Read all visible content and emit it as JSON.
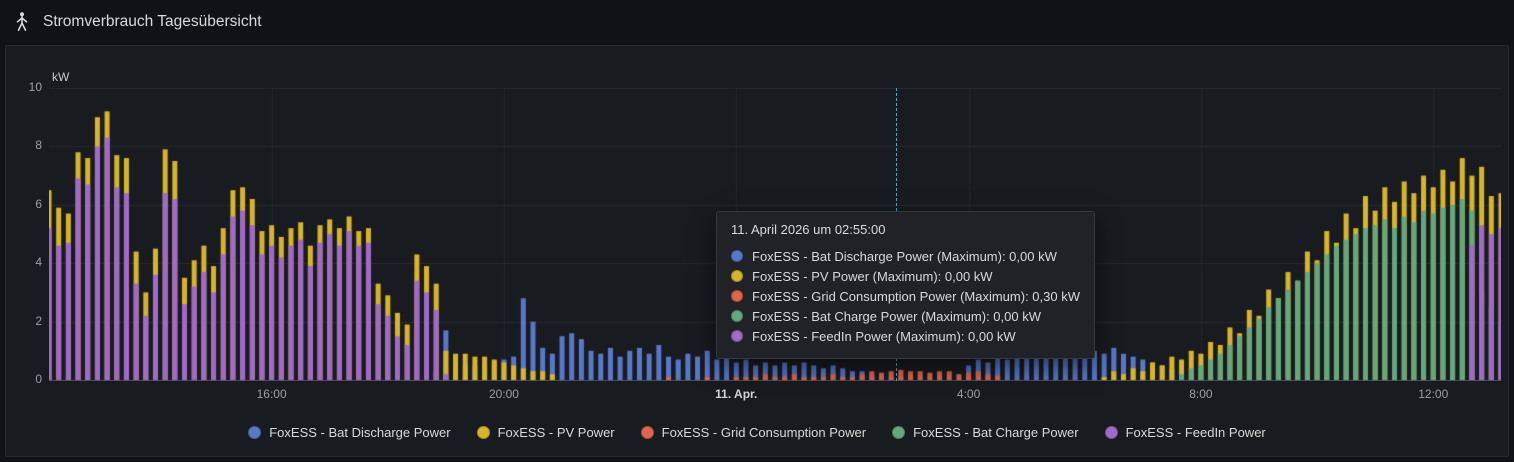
{
  "header": {
    "title": "Stromverbrauch Tagesübersicht"
  },
  "axis": {
    "unit": "kW",
    "y": [
      "10",
      "8",
      "6",
      "4",
      "2",
      "0"
    ],
    "x": [
      "16:00",
      "20:00",
      "11. Apr.",
      "4:00",
      "8:00",
      "12:00"
    ]
  },
  "tooltip": {
    "title": "11. April 2026 um 02:55:00",
    "rows": [
      {
        "text": "FoxESS - Bat Discharge Power (Maximum): 0,00 kW",
        "color": "#5a78c9"
      },
      {
        "text": "FoxESS - PV Power (Maximum): 0,00 kW",
        "color": "#d8b429"
      },
      {
        "text": "FoxESS - Grid Consumption Power (Maximum): 0,30 kW",
        "color": "#e0654f"
      },
      {
        "text": "FoxESS - Bat Charge Power (Maximum): 0,00 kW",
        "color": "#64a87d"
      },
      {
        "text": "FoxESS - FeedIn Power (Maximum): 0,00 kW",
        "color": "#a169c9"
      }
    ]
  },
  "legend": {
    "items": [
      {
        "label": "FoxESS - Bat Discharge Power",
        "color": "#5a78c9"
      },
      {
        "label": "FoxESS - PV Power",
        "color": "#d8b429"
      },
      {
        "label": "FoxESS - Grid Consumption Power",
        "color": "#e0654f"
      },
      {
        "label": "FoxESS - Bat Charge Power",
        "color": "#64a87d"
      },
      {
        "label": "FoxESS - FeedIn Power",
        "color": "#a169c9"
      }
    ]
  },
  "chart_data": {
    "type": "bar",
    "title": "Stromverbrauch Tagesübersicht",
    "ylabel": "kW",
    "ylim": [
      0,
      10
    ],
    "y_ticks": [
      0,
      2,
      4,
      6,
      8,
      10
    ],
    "x_start": "12:10 (10. Apr.)",
    "x_end": "13:10 (11. Apr.)",
    "x_interval_minutes": 10,
    "x_tick_marks": [
      {
        "label": "16:00",
        "index": 23
      },
      {
        "label": "20:00",
        "index": 47
      },
      {
        "label": "11. Apr.",
        "index": 71
      },
      {
        "label": "4:00",
        "index": 95
      },
      {
        "label": "8:00",
        "index": 119
      },
      {
        "label": "12:00",
        "index": 143
      }
    ],
    "cursor": {
      "time": "11. April 2026 um 02:55:00",
      "fraction": 0.583
    },
    "legend_position": "bottom-center",
    "grid": true,
    "series": [
      {
        "name": "FoxESS - Bat Discharge Power",
        "color": "#5a78c9",
        "values": [
          0,
          0,
          0,
          0,
          0,
          0,
          0,
          0,
          0,
          0,
          0,
          0,
          0,
          0,
          0,
          0,
          0,
          0,
          0,
          0,
          0,
          0,
          0,
          0,
          0,
          0,
          0,
          0,
          0,
          0,
          0,
          0,
          0,
          0,
          0,
          0,
          0,
          0,
          0,
          0,
          0.3,
          1.7,
          0.4,
          0.5,
          0.5,
          0.6,
          0.6,
          0.7,
          0.8,
          2.8,
          2.0,
          1.1,
          0.9,
          1.5,
          1.6,
          1.4,
          1.0,
          0.9,
          1.1,
          0.8,
          1.0,
          1.1,
          0.9,
          1.2,
          0.8,
          0.7,
          0.9,
          0.8,
          1.0,
          0.7,
          0.8,
          0.6,
          0.7,
          0.5,
          0.6,
          0.5,
          0.6,
          0.5,
          0.6,
          0.5,
          0.4,
          0.5,
          0.4,
          0.3,
          0.3,
          0.2,
          0.2,
          0.1,
          0.1,
          0,
          0,
          0,
          0,
          0,
          0,
          0.5,
          0.7,
          0.6,
          0.8,
          0.7,
          0.9,
          0.8,
          1.0,
          0.9,
          1.1,
          0.8,
          0.9,
          0.8,
          1.0,
          0.9,
          1.1,
          0.9,
          0.8,
          0.7,
          0.6,
          0.5,
          0.4,
          0,
          0,
          0,
          0,
          0,
          0,
          0,
          0,
          0,
          0,
          0,
          0,
          0,
          0,
          0,
          0,
          0,
          0,
          0,
          0,
          0,
          0,
          0,
          0,
          0,
          0,
          0,
          0,
          0,
          0,
          0,
          0,
          0,
          0
        ]
      },
      {
        "name": "FoxESS - PV Power",
        "color": "#d8b429",
        "values": [
          6.5,
          5.9,
          5.7,
          7.8,
          7.6,
          9.0,
          9.2,
          7.7,
          7.6,
          4.4,
          3.0,
          4.5,
          7.9,
          7.5,
          3.5,
          4.1,
          4.6,
          3.9,
          5.2,
          6.5,
          6.6,
          6.2,
          5.1,
          5.3,
          4.9,
          5.2,
          5.4,
          4.6,
          5.3,
          5.5,
          5.2,
          5.6,
          5.1,
          5.2,
          3.3,
          2.9,
          2.3,
          1.9,
          4.3,
          3.9,
          3.3,
          1.0,
          0.9,
          0.9,
          0.8,
          0.8,
          0.7,
          0.6,
          0.5,
          0.4,
          0.3,
          0.3,
          0.2,
          0,
          0,
          0,
          0,
          0,
          0,
          0,
          0,
          0,
          0,
          0,
          0,
          0,
          0,
          0,
          0,
          0,
          0,
          0,
          0,
          0,
          0,
          0,
          0,
          0,
          0,
          0,
          0,
          0,
          0,
          0,
          0,
          0,
          0,
          0,
          0,
          0,
          0,
          0,
          0,
          0,
          0,
          0,
          0,
          0,
          0,
          0,
          0,
          0,
          0,
          0,
          0,
          0,
          0,
          0,
          0,
          0.1,
          0.3,
          0.2,
          0.4,
          0.3,
          0.6,
          0.5,
          0.8,
          0.7,
          1.0,
          0.9,
          1.3,
          1.2,
          1.8,
          1.6,
          2.4,
          2.2,
          3.1,
          2.8,
          3.7,
          3.4,
          4.4,
          4.1,
          5.1,
          4.7,
          5.7,
          5.2,
          6.3,
          5.8,
          6.6,
          6.1,
          6.8,
          6.4,
          7.0,
          6.6,
          7.2,
          6.8,
          7.6,
          7.0,
          7.3,
          6.3,
          6.4
        ]
      },
      {
        "name": "FoxESS - Grid Consumption Power",
        "color": "#e0654f",
        "values": [
          0,
          0,
          0,
          0,
          0,
          0,
          0,
          0,
          0,
          0,
          0,
          0,
          0,
          0,
          0,
          0,
          0,
          0,
          0,
          0,
          0,
          0,
          0,
          0,
          0,
          0,
          0,
          0,
          0,
          0,
          0,
          0,
          0,
          0,
          0,
          0,
          0,
          0,
          0,
          0,
          0,
          0,
          0,
          0,
          0,
          0,
          0,
          0,
          0,
          0,
          0,
          0,
          0,
          0,
          0,
          0,
          0,
          0,
          0,
          0,
          0,
          0,
          0,
          0,
          0.1,
          0,
          0,
          0,
          0.1,
          0,
          0,
          0.1,
          0.1,
          0.1,
          0.2,
          0.1,
          0.1,
          0.2,
          0.1,
          0.1,
          0.1,
          0.2,
          0.1,
          0.1,
          0.2,
          0.3,
          0.25,
          0.3,
          0.35,
          0.3,
          0.3,
          0.25,
          0.3,
          0.3,
          0.2,
          0.25,
          0.3,
          0.2,
          0.15,
          0,
          0,
          0,
          0,
          0,
          0,
          0,
          0,
          0,
          0,
          0,
          0,
          0,
          0,
          0,
          0,
          0,
          0,
          0,
          0,
          0,
          0,
          0,
          0,
          0,
          0,
          0,
          0,
          0,
          0,
          0,
          0,
          0,
          0,
          0,
          0,
          0,
          0,
          0,
          0,
          0,
          0,
          0,
          0,
          0,
          0,
          0,
          0,
          0,
          0,
          0,
          0
        ]
      },
      {
        "name": "FoxESS - Bat Charge Power",
        "color": "#64a87d",
        "values": [
          0,
          0,
          0,
          0,
          0,
          0,
          0,
          0,
          0,
          0,
          0,
          0,
          0,
          0,
          0,
          0,
          0,
          0,
          0,
          0,
          0,
          0,
          0,
          0,
          0,
          0,
          0,
          0,
          0,
          0,
          0,
          0,
          0,
          0,
          0,
          0,
          0,
          0,
          0,
          0,
          0,
          0,
          0,
          0,
          0,
          0,
          0,
          0,
          0,
          0,
          0,
          0,
          0,
          0,
          0,
          0,
          0,
          0,
          0,
          0,
          0,
          0,
          0,
          0,
          0,
          0,
          0,
          0,
          0,
          0,
          0,
          0,
          0,
          0,
          0,
          0,
          0,
          0,
          0,
          0,
          0,
          0,
          0,
          0,
          0,
          0,
          0,
          0,
          0,
          0,
          0,
          0,
          0,
          0,
          0,
          0,
          0,
          0,
          0,
          0,
          0,
          0,
          0,
          0,
          0,
          0,
          0,
          0,
          0,
          0,
          0,
          0,
          0,
          0,
          0,
          0,
          0,
          0.2,
          0.4,
          0.5,
          0.7,
          0.9,
          1.2,
          1.5,
          1.8,
          2.1,
          2.5,
          2.8,
          3.1,
          3.4,
          3.7,
          4.0,
          4.3,
          4.6,
          4.8,
          5.0,
          5.2,
          5.3,
          5.5,
          5.2,
          5.6,
          5.4,
          5.8,
          5.7,
          5.9,
          6.0,
          6.2,
          5.8,
          3.0,
          2.5,
          2.0
        ]
      },
      {
        "name": "FoxESS - FeedIn Power",
        "color": "#a169c9",
        "values": [
          5.2,
          4.6,
          4.7,
          6.9,
          6.7,
          8.0,
          8.3,
          6.6,
          6.4,
          3.3,
          2.2,
          3.6,
          6.4,
          6.2,
          2.6,
          3.2,
          3.7,
          3.0,
          4.3,
          5.6,
          5.8,
          5.3,
          4.3,
          4.6,
          4.2,
          4.6,
          4.8,
          3.9,
          4.7,
          5.0,
          4.6,
          5.1,
          4.6,
          4.7,
          2.6,
          2.2,
          1.5,
          1.2,
          3.4,
          3.0,
          2.4,
          0.2,
          0,
          0,
          0,
          0,
          0,
          0,
          0,
          0,
          0,
          0,
          0,
          0,
          0,
          0,
          0,
          0,
          0,
          0,
          0,
          0,
          0,
          0,
          0,
          0,
          0,
          0,
          0,
          0,
          0,
          0,
          0,
          0,
          0,
          0,
          0,
          0,
          0,
          0,
          0,
          0,
          0,
          0,
          0,
          0,
          0,
          0,
          0,
          0,
          0,
          0,
          0,
          0,
          0,
          0,
          0,
          0,
          0,
          0,
          0,
          0,
          0,
          0,
          0,
          0,
          0,
          0,
          0,
          0,
          0,
          0,
          0,
          0,
          0,
          0,
          0,
          0,
          0,
          0,
          0,
          0,
          0,
          0,
          0,
          0,
          0,
          0,
          0,
          0,
          0,
          0,
          0,
          0,
          0,
          0,
          0,
          0,
          0,
          0,
          0,
          0,
          0,
          0,
          0,
          0,
          0,
          4.6,
          5.3,
          5.0,
          5.2
        ]
      }
    ]
  }
}
